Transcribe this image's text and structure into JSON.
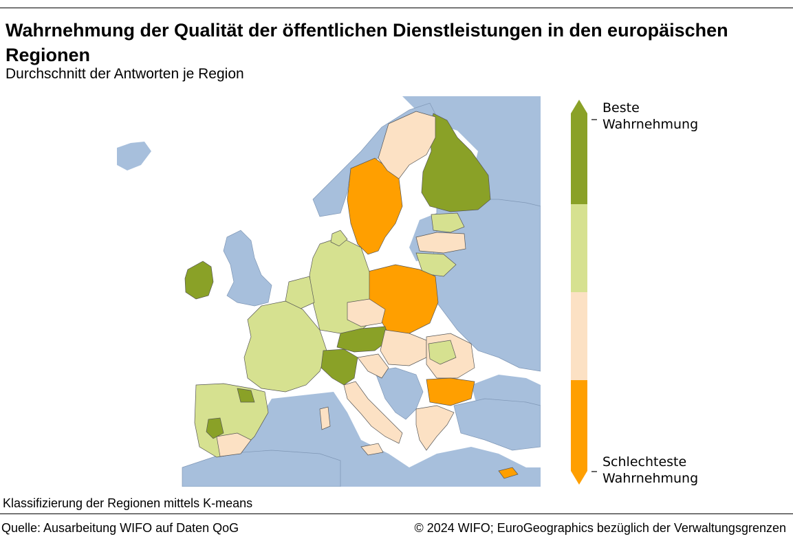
{
  "header": {
    "title": "Wahrnehmung der Qualität der öffentlichen Dienstleistungen in den europäischen Regionen",
    "subtitle": "Durchschnitt der Antworten je Region"
  },
  "legend": {
    "top_label_line1": "Beste",
    "top_label_line2": "Wahrnehmung",
    "bottom_label_line1": "Schlechteste",
    "bottom_label_line2": "Wahrnehmung",
    "classes": [
      {
        "rank": 1,
        "color": "#8aa127"
      },
      {
        "rank": 2,
        "color": "#d6e190"
      },
      {
        "rank": 3,
        "color": "#fce1c4"
      },
      {
        "rank": 4,
        "color": "#ff9f00"
      }
    ]
  },
  "map": {
    "water_color": "#a7bfdc",
    "background_color": "#ffffff",
    "border_color": "#555555"
  },
  "footer": {
    "note": "Klassifizierung der Regionen mittels K-means",
    "source": "Quelle: Ausarbeitung WIFO auf Daten QoG",
    "copyright": "© 2024 WIFO; EuroGeographics bezüglich der Verwaltungsgrenzen"
  }
}
